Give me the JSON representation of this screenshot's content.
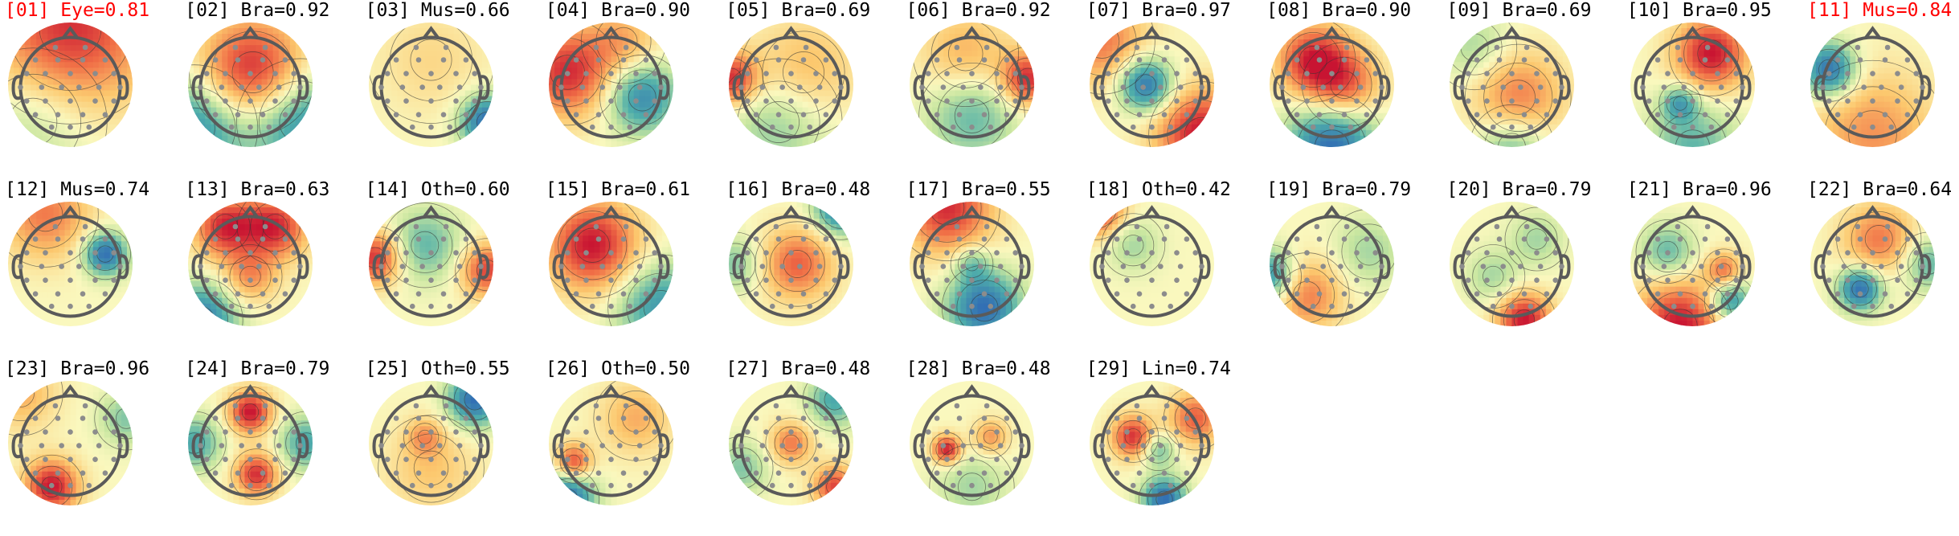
{
  "colors": {
    "flagged": "#ff0000",
    "normal": "#000000",
    "electrode": "#8c8c8c",
    "head_outline": "#5a5a5a"
  },
  "components": [
    {
      "index": "01",
      "label": "Eye",
      "score": "0.81",
      "flagged": true,
      "blobs": [
        [
          0.5,
          0.05,
          0.45,
          0.9
        ],
        [
          0.2,
          0.8,
          0.35,
          -0.3
        ]
      ]
    },
    {
      "index": "02",
      "label": "Bra",
      "score": "0.92",
      "flagged": false,
      "blobs": [
        [
          0.52,
          0.4,
          0.3,
          1.0
        ],
        [
          0.05,
          0.85,
          0.3,
          -0.8
        ],
        [
          0.9,
          0.8,
          0.3,
          -0.8
        ]
      ]
    },
    {
      "index": "03",
      "label": "Mus",
      "score": "0.66",
      "flagged": false,
      "blobs": [
        [
          0.95,
          0.8,
          0.15,
          -1.0
        ],
        [
          0.5,
          0.3,
          0.3,
          0.2
        ]
      ]
    },
    {
      "index": "04",
      "label": "Bra",
      "score": "0.90",
      "flagged": false,
      "blobs": [
        [
          0.15,
          0.4,
          0.25,
          0.9
        ],
        [
          0.75,
          0.6,
          0.2,
          -0.8
        ],
        [
          0.6,
          0.15,
          0.2,
          0.4
        ]
      ]
    },
    {
      "index": "05",
      "label": "Bra",
      "score": "0.69",
      "flagged": false,
      "blobs": [
        [
          0.02,
          0.45,
          0.15,
          0.9
        ],
        [
          0.6,
          0.4,
          0.3,
          0.4
        ],
        [
          0.4,
          0.8,
          0.3,
          -0.4
        ]
      ]
    },
    {
      "index": "06",
      "label": "Bra",
      "score": "0.92",
      "flagged": false,
      "blobs": [
        [
          0.95,
          0.45,
          0.15,
          0.9
        ],
        [
          0.5,
          0.75,
          0.25,
          -0.5
        ],
        [
          0.45,
          0.25,
          0.25,
          0.4
        ]
      ]
    },
    {
      "index": "07",
      "label": "Bra",
      "score": "0.97",
      "flagged": false,
      "blobs": [
        [
          0.45,
          0.5,
          0.15,
          -1.0
        ],
        [
          0.9,
          0.9,
          0.25,
          1.0
        ],
        [
          0.1,
          0.15,
          0.25,
          0.6
        ]
      ]
    },
    {
      "index": "08",
      "label": "Bra",
      "score": "0.90",
      "flagged": false,
      "blobs": [
        [
          0.35,
          0.3,
          0.2,
          0.9
        ],
        [
          0.6,
          0.5,
          0.2,
          0.7
        ],
        [
          0.5,
          1.0,
          0.25,
          -1.0
        ]
      ]
    },
    {
      "index": "09",
      "label": "Bra",
      "score": "0.69",
      "flagged": false,
      "blobs": [
        [
          0.55,
          0.6,
          0.25,
          0.6
        ],
        [
          0.5,
          1.0,
          0.2,
          -0.5
        ],
        [
          0.2,
          0.2,
          0.2,
          -0.3
        ]
      ]
    },
    {
      "index": "10",
      "label": "Bra",
      "score": "0.95",
      "flagged": false,
      "blobs": [
        [
          0.65,
          0.25,
          0.2,
          1.0
        ],
        [
          0.4,
          0.65,
          0.1,
          -0.6
        ],
        [
          0.5,
          1.0,
          0.25,
          -0.5
        ]
      ]
    },
    {
      "index": "11",
      "label": "Mus",
      "score": "0.84",
      "flagged": true,
      "blobs": [
        [
          0.15,
          0.38,
          0.15,
          -1.0
        ],
        [
          0.5,
          0.9,
          0.35,
          0.5
        ]
      ]
    },
    {
      "index": "12",
      "label": "Mus",
      "score": "0.74",
      "flagged": false,
      "blobs": [
        [
          0.78,
          0.42,
          0.12,
          -1.0
        ],
        [
          0.3,
          0.1,
          0.25,
          0.6
        ]
      ]
    },
    {
      "index": "13",
      "label": "Bra",
      "score": "0.63",
      "flagged": false,
      "blobs": [
        [
          0.3,
          0.2,
          0.18,
          0.9
        ],
        [
          0.7,
          0.2,
          0.18,
          0.9
        ],
        [
          0.1,
          0.95,
          0.2,
          -0.9
        ],
        [
          0.5,
          0.6,
          0.15,
          0.5
        ]
      ]
    },
    {
      "index": "14",
      "label": "Oth",
      "score": "0.60",
      "flagged": false,
      "blobs": [
        [
          0.05,
          0.45,
          0.15,
          0.9
        ],
        [
          0.95,
          0.55,
          0.15,
          0.8
        ],
        [
          0.45,
          0.35,
          0.2,
          -0.5
        ]
      ]
    },
    {
      "index": "15",
      "label": "Bra",
      "score": "0.61",
      "flagged": false,
      "blobs": [
        [
          0.35,
          0.35,
          0.25,
          1.0
        ],
        [
          0.9,
          0.85,
          0.25,
          -0.7
        ]
      ]
    },
    {
      "index": "16",
      "label": "Bra",
      "score": "0.48",
      "flagged": false,
      "blobs": [
        [
          0.55,
          0.5,
          0.2,
          0.7
        ],
        [
          0.9,
          0.05,
          0.15,
          -0.9
        ],
        [
          0.05,
          0.5,
          0.15,
          -0.4
        ]
      ]
    },
    {
      "index": "17",
      "label": "Bra",
      "score": "0.55",
      "flagged": false,
      "blobs": [
        [
          0.6,
          0.85,
          0.2,
          -1.0
        ],
        [
          0.3,
          0.05,
          0.25,
          0.9
        ],
        [
          0.5,
          0.5,
          0.1,
          -0.4
        ]
      ]
    },
    {
      "index": "18",
      "label": "Oth",
      "score": "0.42",
      "flagged": false,
      "blobs": [
        [
          0.05,
          0.05,
          0.15,
          1.0
        ],
        [
          0.35,
          0.35,
          0.15,
          -0.3
        ]
      ]
    },
    {
      "index": "19",
      "label": "Bra",
      "score": "0.79",
      "flagged": false,
      "blobs": [
        [
          0.0,
          0.6,
          0.15,
          -0.8
        ],
        [
          0.3,
          0.75,
          0.2,
          0.6
        ],
        [
          0.8,
          0.4,
          0.2,
          -0.3
        ]
      ]
    },
    {
      "index": "20",
      "label": "Bra",
      "score": "0.79",
      "flagged": false,
      "blobs": [
        [
          0.6,
          0.95,
          0.15,
          1.0
        ],
        [
          0.35,
          0.6,
          0.15,
          -0.3
        ],
        [
          0.7,
          0.3,
          0.15,
          -0.3
        ]
      ]
    },
    {
      "index": "21",
      "label": "Bra",
      "score": "0.96",
      "flagged": false,
      "blobs": [
        [
          0.4,
          1.0,
          0.25,
          1.0
        ],
        [
          0.8,
          0.8,
          0.12,
          -0.8
        ],
        [
          0.3,
          0.4,
          0.15,
          -0.5
        ],
        [
          0.75,
          0.55,
          0.1,
          0.6
        ]
      ]
    },
    {
      "index": "22",
      "label": "Bra",
      "score": "0.64",
      "flagged": false,
      "blobs": [
        [
          0.4,
          0.7,
          0.12,
          -1.0
        ],
        [
          0.55,
          0.3,
          0.2,
          0.6
        ],
        [
          0.95,
          0.5,
          0.15,
          -0.5
        ]
      ]
    },
    {
      "index": "23",
      "label": "Bra",
      "score": "0.96",
      "flagged": false,
      "blobs": [
        [
          0.35,
          0.85,
          0.15,
          1.0
        ],
        [
          0.1,
          0.1,
          0.2,
          0.4
        ],
        [
          0.95,
          0.3,
          0.15,
          -0.4
        ]
      ]
    },
    {
      "index": "24",
      "label": "Bra",
      "score": "0.79",
      "flagged": false,
      "blobs": [
        [
          0.5,
          0.25,
          0.12,
          1.0
        ],
        [
          0.55,
          0.75,
          0.12,
          0.9
        ],
        [
          0.05,
          0.5,
          0.15,
          -0.6
        ],
        [
          0.95,
          0.5,
          0.15,
          -0.6
        ]
      ]
    },
    {
      "index": "25",
      "label": "Oth",
      "score": "0.55",
      "flagged": false,
      "blobs": [
        [
          0.85,
          0.15,
          0.15,
          -1.0
        ],
        [
          0.5,
          0.7,
          0.25,
          0.3
        ],
        [
          0.45,
          0.45,
          0.1,
          0.4
        ]
      ]
    },
    {
      "index": "26",
      "label": "Oth",
      "score": "0.50",
      "flagged": false,
      "blobs": [
        [
          0.15,
          0.95,
          0.15,
          -1.0
        ],
        [
          0.2,
          0.65,
          0.1,
          0.8
        ],
        [
          0.7,
          0.3,
          0.2,
          0.4
        ]
      ]
    },
    {
      "index": "27",
      "label": "Bra",
      "score": "0.48",
      "flagged": false,
      "blobs": [
        [
          0.85,
          0.85,
          0.12,
          0.8
        ],
        [
          0.5,
          0.5,
          0.12,
          0.6
        ],
        [
          0.85,
          0.15,
          0.15,
          -0.6
        ],
        [
          0.1,
          0.7,
          0.15,
          -0.4
        ]
      ]
    },
    {
      "index": "28",
      "label": "Bra",
      "score": "0.48",
      "flagged": false,
      "blobs": [
        [
          0.3,
          0.55,
          0.08,
          1.0
        ],
        [
          0.65,
          0.45,
          0.1,
          0.5
        ],
        [
          0.5,
          0.85,
          0.2,
          -0.3
        ]
      ]
    },
    {
      "index": "29",
      "label": "Lin",
      "score": "0.74",
      "flagged": false,
      "blobs": [
        [
          0.35,
          0.45,
          0.12,
          0.9
        ],
        [
          0.6,
          0.95,
          0.12,
          -1.0
        ],
        [
          0.55,
          0.55,
          0.1,
          -0.5
        ],
        [
          0.85,
          0.3,
          0.15,
          0.7
        ]
      ]
    }
  ]
}
